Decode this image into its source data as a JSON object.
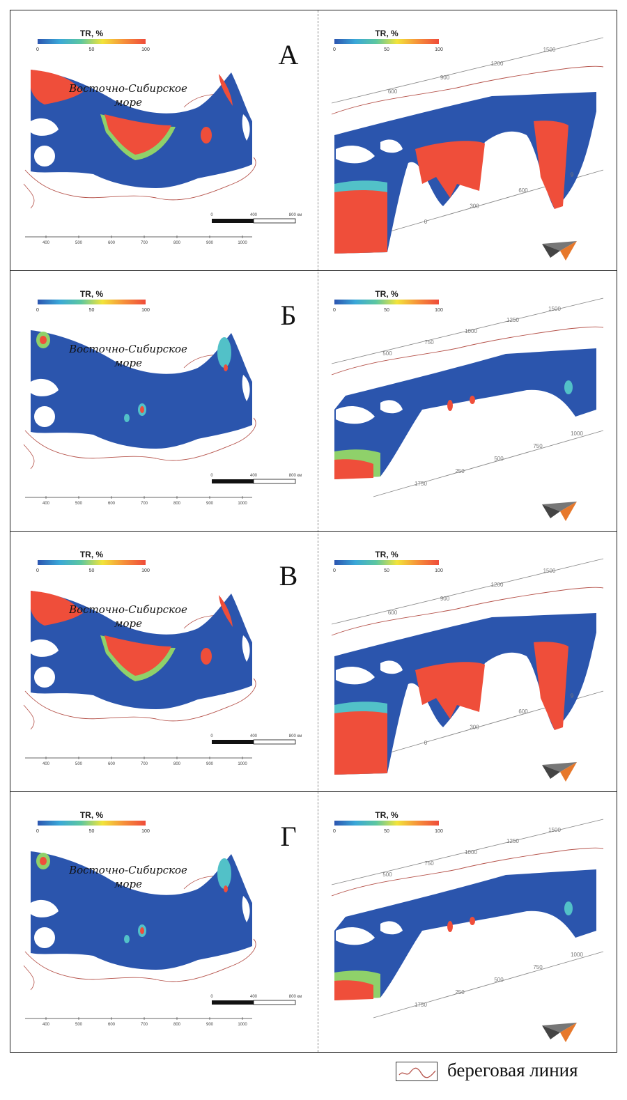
{
  "colorbar": {
    "label": "TR, %",
    "ticks": [
      "0",
      "50",
      "100"
    ],
    "gradient": [
      "#2c55b0",
      "#3aa7d8",
      "#5cc7a0",
      "#f2e43a",
      "#f6903a",
      "#ef4b3a"
    ]
  },
  "colors": {
    "sea": "#2b55ad",
    "hot": "#ef4e3a",
    "coast": "#b5524a",
    "cyan": "#52c1c8",
    "green": "#8fd16a"
  },
  "sea_name_line1": "Восточно-Сибирское",
  "sea_name_line2": "море",
  "scale_bar": {
    "labels": [
      "0",
      "400",
      "800 км"
    ]
  },
  "x_axis_ticks": [
    "400",
    "500",
    "600",
    "700",
    "800",
    "900",
    "1000"
  ],
  "panels": [
    {
      "letter": "А",
      "contours": [
        "600",
        "900",
        "1200",
        "1500",
        "0",
        "300",
        "600",
        "9"
      ]
    },
    {
      "letter": "Б",
      "contours": [
        "500",
        "750",
        "1000",
        "1250",
        "1500",
        "1750",
        "250",
        "500",
        "750",
        "1000"
      ]
    },
    {
      "letter": "В",
      "contours": [
        "600",
        "900",
        "1200",
        "1500",
        "0",
        "300",
        "600",
        "9"
      ]
    },
    {
      "letter": "Г",
      "contours": [
        "500",
        "750",
        "1000",
        "1250",
        "1500",
        "1750",
        "250",
        "500",
        "750",
        "1000"
      ]
    }
  ],
  "legend": {
    "label": "береговая линия",
    "icon": "coastline-icon"
  }
}
